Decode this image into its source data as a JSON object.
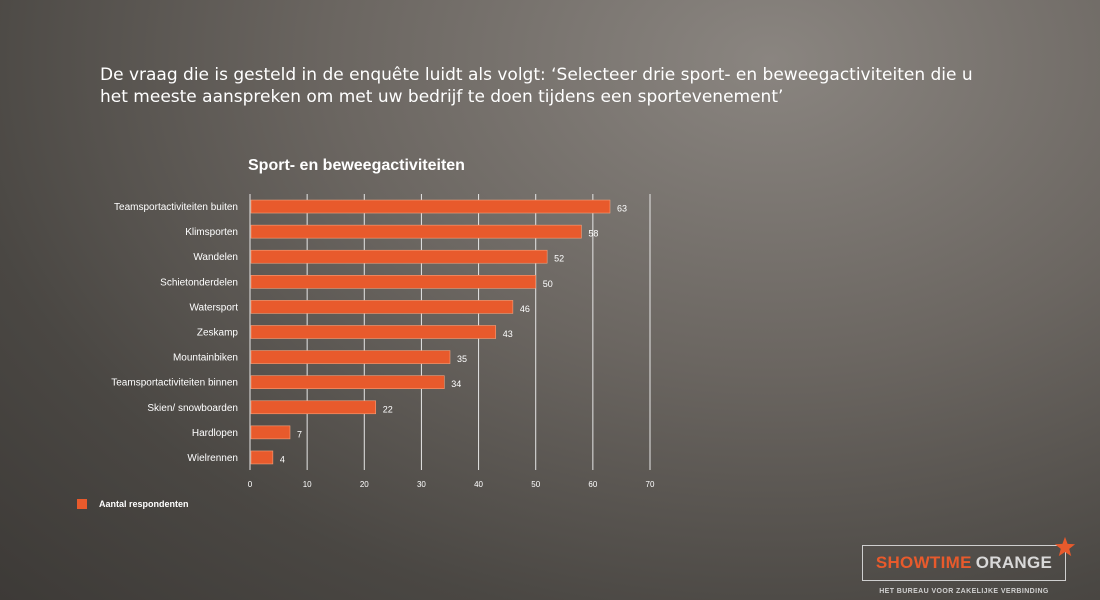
{
  "question": "De vraag die is gesteld in de enquête luidt als volgt: ‘Selecteer drie sport- en beweegactiviteiten die u het meeste aanspreken om met uw bedrijf te doen tijdens een sportevenement’",
  "chart_data": {
    "type": "bar",
    "orientation": "horizontal",
    "title": "Sport- en beweegactiviteiten",
    "categories": [
      "Teamsportactiviteiten buiten",
      "Klimsporten",
      "Wandelen",
      "Schietonderdelen",
      "Watersport",
      "Zeskamp",
      "Mountainbiken",
      "Teamsportactiviteiten binnen",
      "Skien/ snowboarden",
      "Hardlopen",
      "Wielrennen"
    ],
    "series": [
      {
        "name": "Aantal respondenten",
        "values": [
          63,
          58,
          52,
          50,
          46,
          43,
          35,
          34,
          22,
          7,
          4
        ]
      }
    ],
    "xlim": [
      0,
      70
    ],
    "xticks": [
      0,
      10,
      20,
      30,
      40,
      50,
      60,
      70
    ],
    "grid": true,
    "legend_position": "bottom-left",
    "bar_color": "#e85a2c"
  },
  "logo": {
    "word1": "SHOWTIME",
    "word2": "ORANGE",
    "tagline": "HET BUREAU VOOR ZAKELIJKE VERBINDING"
  }
}
